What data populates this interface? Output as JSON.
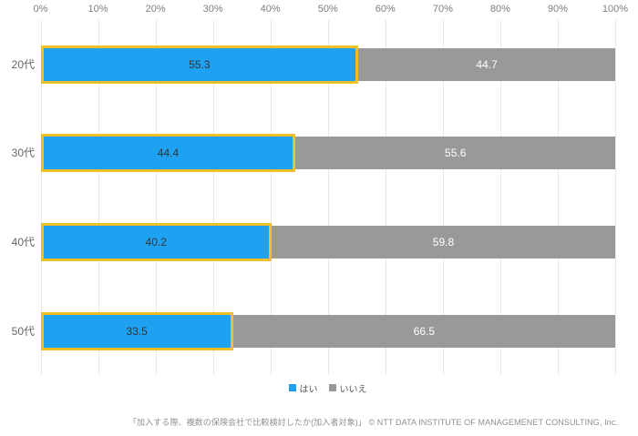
{
  "chart_data": {
    "type": "bar",
    "orientation": "horizontal",
    "stacked": true,
    "categories": [
      "20代",
      "30代",
      "40代",
      "50代"
    ],
    "series": [
      {
        "name": "はい",
        "values": [
          55.3,
          44.4,
          40.2,
          33.5
        ],
        "color": "#1fa1f2",
        "border_color": "#f0c029"
      },
      {
        "name": "いいえ",
        "values": [
          44.7,
          55.6,
          59.8,
          66.5
        ],
        "color": "#999999"
      }
    ],
    "x_axis": {
      "min": 0,
      "max": 100,
      "ticks": [
        "0%",
        "10%",
        "20%",
        "30%",
        "40%",
        "50%",
        "60%",
        "70%",
        "80%",
        "90%",
        "100%"
      ]
    },
    "grid": true,
    "legend_position": "bottom",
    "value_label_color_yes": "#333333",
    "value_label_color_no": "#ffffff",
    "gridline_color": "#e9e9e9"
  },
  "footer": {
    "source_text": "「加入する際、複数の保険会社で比較検討したか(加入者対象)」 © NTT DATA INSTITUTE OF MANAGEMENET CONSULTING, Inc."
  }
}
